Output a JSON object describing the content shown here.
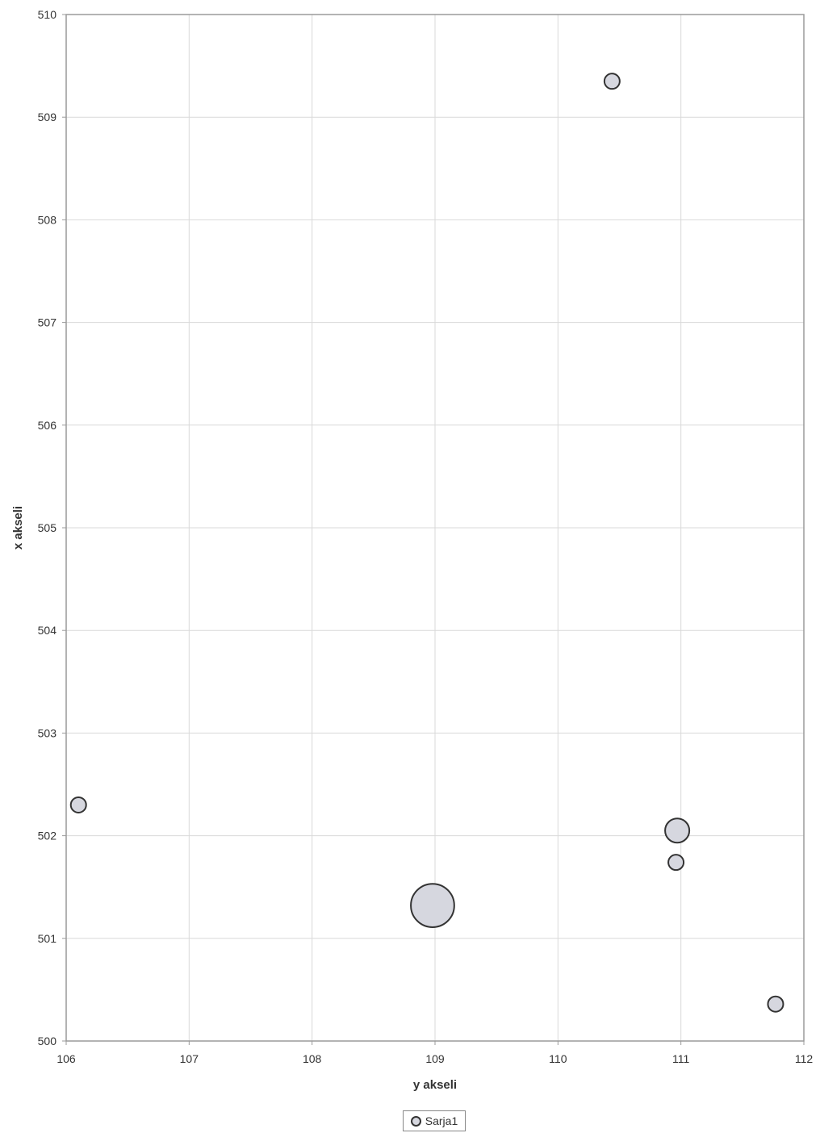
{
  "chart_data": {
    "type": "scatter",
    "title": "",
    "xlabel": "y akseli",
    "ylabel": "x akseli",
    "xlim": [
      106,
      112
    ],
    "ylim": [
      500,
      510
    ],
    "x_ticks": [
      "106",
      "107",
      "108",
      "109",
      "110",
      "111",
      "112"
    ],
    "y_ticks": [
      "500",
      "501",
      "502",
      "503",
      "504",
      "505",
      "506",
      "507",
      "508",
      "509",
      "510"
    ],
    "grid": true,
    "legend_position": "bottom",
    "series": [
      {
        "name": "Sarja1",
        "marker_fill": "#d6d7df",
        "marker_edge": "#333333",
        "points": [
          {
            "x": 110.44,
            "y": 509.35,
            "size": 1
          },
          {
            "x": 106.1,
            "y": 502.3,
            "size": 1
          },
          {
            "x": 110.97,
            "y": 502.05,
            "size": 2.5
          },
          {
            "x": 110.96,
            "y": 501.74,
            "size": 1
          },
          {
            "x": 108.98,
            "y": 501.32,
            "size": 8
          },
          {
            "x": 111.77,
            "y": 500.36,
            "size": 1
          }
        ]
      }
    ]
  },
  "colors": {
    "grid": "#d9d9d9",
    "axis": "#9a9a9a",
    "background": "#ffffff"
  }
}
